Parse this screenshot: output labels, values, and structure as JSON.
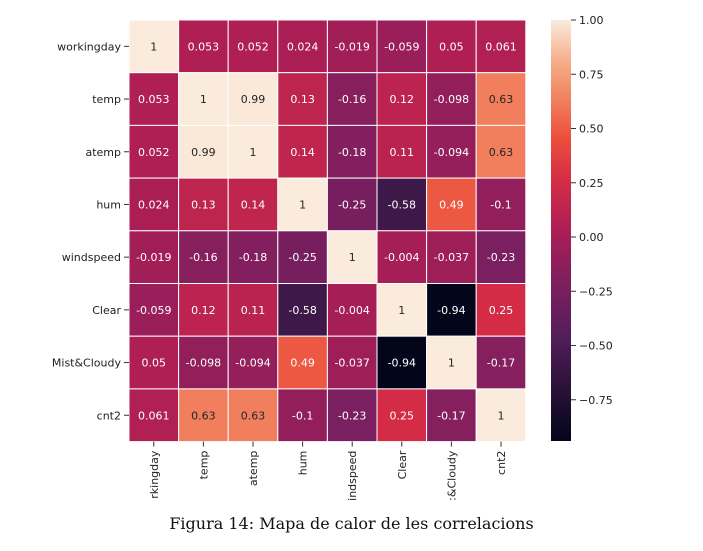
{
  "caption": "Figura 14: Mapa de calor de les correlacions",
  "chart_data": {
    "type": "heatmap",
    "row_labels": [
      "workingday",
      "temp",
      "atemp",
      "hum",
      "windspeed",
      "Clear",
      "Mist&Cloudy",
      "cnt2"
    ],
    "col_labels": [
      "rkingday",
      "temp",
      "atemp",
      "hum",
      "indspeed",
      "Clear",
      ":&Cloudy",
      "cnt2"
    ],
    "values": [
      [
        1,
        0.053,
        0.052,
        0.024,
        -0.019,
        -0.059,
        0.05,
        0.061
      ],
      [
        0.053,
        1,
        0.99,
        0.13,
        -0.16,
        0.12,
        -0.098,
        0.63
      ],
      [
        0.052,
        0.99,
        1,
        0.14,
        -0.18,
        0.11,
        -0.094,
        0.63
      ],
      [
        0.024,
        0.13,
        0.14,
        1,
        -0.25,
        -0.58,
        0.49,
        -0.1
      ],
      [
        -0.019,
        -0.16,
        -0.18,
        -0.25,
        1,
        -0.004,
        -0.037,
        -0.23
      ],
      [
        -0.059,
        0.12,
        0.11,
        -0.58,
        -0.004,
        1,
        -0.94,
        0.25
      ],
      [
        0.05,
        -0.098,
        -0.094,
        0.49,
        -0.037,
        -0.94,
        1,
        -0.17
      ],
      [
        0.061,
        0.63,
        0.63,
        -0.1,
        -0.23,
        0.25,
        -0.17,
        1
      ]
    ],
    "annotations": [
      [
        "1",
        "0.053",
        "0.052",
        "0.024",
        "-0.019",
        "-0.059",
        "0.05",
        "0.061"
      ],
      [
        "0.053",
        "1",
        "0.99",
        "0.13",
        "-0.16",
        "0.12",
        "-0.098",
        "0.63"
      ],
      [
        "0.052",
        "0.99",
        "1",
        "0.14",
        "-0.18",
        "0.11",
        "-0.094",
        "0.63"
      ],
      [
        "0.024",
        "0.13",
        "0.14",
        "1",
        "-0.25",
        "-0.58",
        "0.49",
        "-0.1"
      ],
      [
        "-0.019",
        "-0.16",
        "-0.18",
        "-0.25",
        "1",
        "-0.004",
        "-0.037",
        "-0.23"
      ],
      [
        "-0.059",
        "0.12",
        "0.11",
        "-0.58",
        "-0.004",
        "1",
        "-0.94",
        "0.25"
      ],
      [
        "0.05",
        "-0.098",
        "-0.094",
        "0.49",
        "-0.037",
        "-0.94",
        "1",
        "-0.17"
      ],
      [
        "0.061",
        "0.63",
        "0.63",
        "-0.1",
        "-0.23",
        "0.25",
        "-0.17",
        "1"
      ]
    ],
    "colormap": "rocket",
    "colorbar": {
      "vmin": -0.94,
      "vmax": 1.0,
      "ticks": [
        1.0,
        0.75,
        0.5,
        0.25,
        0.0,
        -0.25,
        -0.5,
        -0.75
      ],
      "tick_labels": [
        "1.00",
        "0.75",
        "0.50",
        "0.25",
        "0.00",
        "−0.25",
        "−0.50",
        "−0.75"
      ]
    },
    "cell_border_color": "#ffffff"
  }
}
